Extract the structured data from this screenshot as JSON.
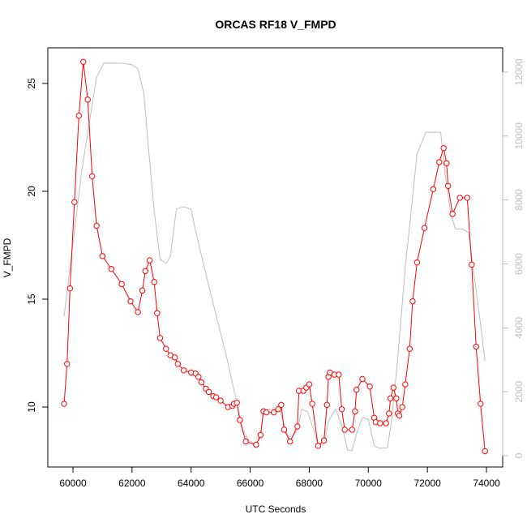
{
  "chart_data": {
    "type": "line",
    "title": "ORCAS RF18 V_FMPD",
    "xlabel": "UTC Seconds",
    "ylabel": "V_FMPD",
    "xlim": [
      59149,
      74549
    ],
    "ylim": [
      7.22,
      26.65
    ],
    "y2lim": [
      -355,
      12760
    ],
    "xticks": [
      60000,
      62000,
      64000,
      66000,
      68000,
      70000,
      72000,
      74000
    ],
    "yticks": [
      10,
      15,
      20,
      25
    ],
    "y2ticks": [
      0,
      2000,
      4000,
      6000,
      8000,
      10000,
      12000
    ],
    "y2_color": "#bebebe",
    "series": [
      {
        "color": "#bebebe",
        "axis": "y2",
        "markers": false,
        "x": [
          59700,
          60300,
          60800,
          61050,
          61650,
          62000,
          62200,
          62400,
          62550,
          62750,
          62950,
          63150,
          63300,
          63500,
          63750,
          64000,
          64150,
          64650,
          65200,
          65750,
          65950,
          66200,
          66350,
          66450,
          66750,
          67000,
          67200,
          67350,
          67600,
          67750,
          67950,
          68150,
          68300,
          68500,
          68650,
          68800,
          68900,
          69100,
          69300,
          69450,
          69600,
          69800,
          70000,
          70200,
          70400,
          70650,
          70800,
          71000,
          71250,
          71650,
          71950,
          72250,
          72450,
          72600,
          72800,
          72950,
          73200,
          73400,
          73550,
          73800,
          73950
        ],
        "values": [
          4360,
          8930,
          11850,
          12280,
          12280,
          12230,
          12100,
          11340,
          9690,
          7660,
          6140,
          6010,
          6240,
          7710,
          7790,
          7710,
          7030,
          5120,
          3090,
          810,
          480,
          355,
          560,
          1450,
          1450,
          1450,
          810,
          480,
          810,
          1450,
          1370,
          810,
          355,
          355,
          1070,
          1320,
          1450,
          940,
          180,
          150,
          690,
          1190,
          1140,
          300,
          230,
          250,
          1190,
          3090,
          5880,
          9440,
          10120,
          10120,
          10120,
          8800,
          7530,
          7100,
          7080,
          6980,
          5880,
          4110,
          2970
        ]
      },
      {
        "color": "#ff0000",
        "axis": "y",
        "markers": true,
        "x": [
          59700,
          59800,
          59900,
          60050,
          60200,
          60350,
          60500,
          60650,
          60800,
          61000,
          61300,
          61650,
          61950,
          62200,
          62350,
          62450,
          62600,
          62750,
          62850,
          62950,
          63150,
          63300,
          63450,
          63550,
          63750,
          64000,
          64150,
          64250,
          64350,
          64500,
          64600,
          64750,
          64850,
          65000,
          65250,
          65400,
          65450,
          65550,
          65650,
          65850,
          66200,
          66350,
          66450,
          66550,
          66800,
          66950,
          67050,
          67150,
          67350,
          67600,
          67650,
          67800,
          67900,
          68000,
          68100,
          68300,
          68500,
          68600,
          68650,
          68700,
          68850,
          69000,
          69100,
          69200,
          69450,
          69550,
          69600,
          69800,
          70050,
          70200,
          70250,
          70400,
          70600,
          70700,
          70750,
          70850,
          70950,
          71000,
          71050,
          71150,
          71250,
          71400,
          71500,
          71650,
          71900,
          72200,
          72400,
          72550,
          72650,
          72700,
          72850,
          73100,
          73350,
          73500,
          73650,
          73800,
          73950
        ],
        "values": [
          10.15,
          12.0,
          15.5,
          19.5,
          23.5,
          26.0,
          24.25,
          20.7,
          18.4,
          17.0,
          16.4,
          15.7,
          14.9,
          14.4,
          15.4,
          16.3,
          16.8,
          15.8,
          14.35,
          13.2,
          12.7,
          12.4,
          12.3,
          12.0,
          11.7,
          11.6,
          11.55,
          11.4,
          11.15,
          10.85,
          10.7,
          10.5,
          10.45,
          10.3,
          10.0,
          10.05,
          10.15,
          10.2,
          9.4,
          8.4,
          8.25,
          8.7,
          9.8,
          9.75,
          9.75,
          9.9,
          10.1,
          8.95,
          8.4,
          9.1,
          10.75,
          10.75,
          10.9,
          11.05,
          10.15,
          8.2,
          8.45,
          10.1,
          11.4,
          11.6,
          11.5,
          11.5,
          9.9,
          8.95,
          8.95,
          9.8,
          10.8,
          11.3,
          10.95,
          9.5,
          9.3,
          9.25,
          9.25,
          9.7,
          10.4,
          10.9,
          10.4,
          9.7,
          9.6,
          10.0,
          11.05,
          12.7,
          14.9,
          16.7,
          18.3,
          20.1,
          21.35,
          22.0,
          21.3,
          20.25,
          18.95,
          19.7,
          19.7,
          16.6,
          12.8,
          10.15,
          7.95
        ]
      }
    ]
  }
}
